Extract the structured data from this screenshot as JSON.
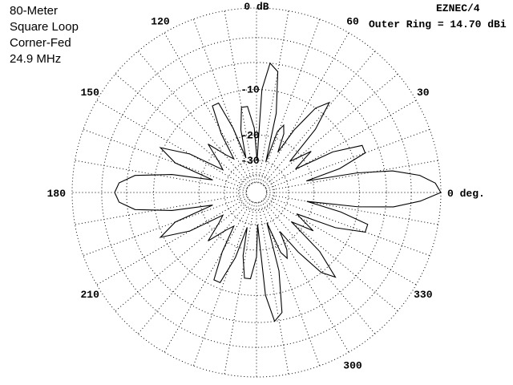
{
  "title_block": {
    "lines": [
      "80-Meter",
      "Square Loop",
      "Corner-Fed",
      "24.9 MHz"
    ]
  },
  "program": "EZNEC/4",
  "outer_ring_label": "Outer Ring = 14.70 dBi",
  "chart_data": {
    "type": "polar",
    "title": "",
    "angle_labels": [
      {
        "angle": 0,
        "text": "0 deg."
      },
      {
        "angle": 30,
        "text": "30"
      },
      {
        "angle": 60,
        "text": "60"
      },
      {
        "angle": 90,
        "text": "0 dB"
      },
      {
        "angle": 120,
        "text": "120"
      },
      {
        "angle": 150,
        "text": "150"
      },
      {
        "angle": 180,
        "text": "180"
      },
      {
        "angle": 210,
        "text": "210"
      },
      {
        "angle": 300,
        "text": "300"
      },
      {
        "angle": 330,
        "text": "330"
      }
    ],
    "radial_labels": [
      "-10",
      "-20",
      "-30"
    ],
    "radial_label_db": [
      -10,
      -20,
      -30
    ],
    "ring_db": [
      0,
      -3,
      -6,
      -10,
      -20,
      -30,
      -40,
      -50
    ],
    "reference_dbi": 14.7,
    "spoke_step_deg": 10,
    "grid": true,
    "pattern_series": {
      "name": "",
      "points": [
        {
          "az": 0,
          "db": 0
        },
        {
          "az": 3,
          "db": -0.5
        },
        {
          "az": 6,
          "db": -2
        },
        {
          "az": 9,
          "db": -5
        },
        {
          "az": 11,
          "db": -10
        },
        {
          "az": 13,
          "db": -22
        },
        {
          "az": 16,
          "db": -13
        },
        {
          "az": 20,
          "db": -8
        },
        {
          "az": 24,
          "db": -8
        },
        {
          "az": 28,
          "db": -13
        },
        {
          "az": 31,
          "db": -24
        },
        {
          "az": 34,
          "db": -21
        },
        {
          "az": 37,
          "db": -17
        },
        {
          "az": 40,
          "db": -21
        },
        {
          "az": 43,
          "db": -24
        },
        {
          "az": 47,
          "db": -13
        },
        {
          "az": 51,
          "db": -8
        },
        {
          "az": 55,
          "db": -10
        },
        {
          "az": 59,
          "db": -16
        },
        {
          "az": 62,
          "db": -24
        },
        {
          "az": 65,
          "db": -18
        },
        {
          "az": 68,
          "db": -16
        },
        {
          "az": 71,
          "db": -18
        },
        {
          "az": 73,
          "db": -30
        },
        {
          "az": 76,
          "db": -14
        },
        {
          "az": 80,
          "db": -7
        },
        {
          "az": 84,
          "db": -6
        },
        {
          "az": 87,
          "db": -10
        },
        {
          "az": 89,
          "db": -30
        },
        {
          "az": 92,
          "db": -18
        },
        {
          "az": 96,
          "db": -13
        },
        {
          "az": 100,
          "db": -13
        },
        {
          "az": 104,
          "db": -18
        },
        {
          "az": 107,
          "db": -28
        },
        {
          "az": 110,
          "db": -17
        },
        {
          "az": 113,
          "db": -11
        },
        {
          "az": 117,
          "db": -11
        },
        {
          "az": 121,
          "db": -17
        },
        {
          "az": 124,
          "db": -26
        },
        {
          "az": 129,
          "db": -23
        },
        {
          "az": 135,
          "db": -17
        },
        {
          "az": 141,
          "db": -23
        },
        {
          "az": 146,
          "db": -26
        },
        {
          "az": 150,
          "db": -15
        },
        {
          "az": 155,
          "db": -9.5
        },
        {
          "az": 160,
          "db": -13
        },
        {
          "az": 164,
          "db": -24
        },
        {
          "az": 168,
          "db": -13
        },
        {
          "az": 172,
          "db": -7
        },
        {
          "az": 176,
          "db": -5
        },
        {
          "az": 180,
          "db": -4.5
        },
        {
          "az": 184,
          "db": -5
        },
        {
          "az": 188,
          "db": -7
        },
        {
          "az": 192,
          "db": -13
        },
        {
          "az": 196,
          "db": -24
        },
        {
          "az": 200,
          "db": -13
        },
        {
          "az": 205,
          "db": -9.5
        },
        {
          "az": 210,
          "db": -15
        },
        {
          "az": 214,
          "db": -26
        },
        {
          "az": 219,
          "db": -23
        },
        {
          "az": 225,
          "db": -17
        },
        {
          "az": 231,
          "db": -23
        },
        {
          "az": 236,
          "db": -26
        },
        {
          "az": 240,
          "db": -17
        },
        {
          "az": 244,
          "db": -11
        },
        {
          "az": 248,
          "db": -11
        },
        {
          "az": 252,
          "db": -17
        },
        {
          "az": 255,
          "db": -28
        },
        {
          "az": 258,
          "db": -18
        },
        {
          "az": 262,
          "db": -13
        },
        {
          "az": 266,
          "db": -13
        },
        {
          "az": 270,
          "db": -18
        },
        {
          "az": 272,
          "db": -30
        },
        {
          "az": 275,
          "db": -10
        },
        {
          "az": 278,
          "db": -6
        },
        {
          "az": 282,
          "db": -7
        },
        {
          "az": 286,
          "db": -14
        },
        {
          "az": 289,
          "db": -30
        },
        {
          "az": 292,
          "db": -18
        },
        {
          "az": 295,
          "db": -16
        },
        {
          "az": 298,
          "db": -18
        },
        {
          "az": 301,
          "db": -24
        },
        {
          "az": 305,
          "db": -16
        },
        {
          "az": 309,
          "db": -10
        },
        {
          "az": 313,
          "db": -8
        },
        {
          "az": 317,
          "db": -13
        },
        {
          "az": 320,
          "db": -24
        },
        {
          "az": 323,
          "db": -21
        },
        {
          "az": 326,
          "db": -17
        },
        {
          "az": 329,
          "db": -21
        },
        {
          "az": 332,
          "db": -24
        },
        {
          "az": 336,
          "db": -13
        },
        {
          "az": 340,
          "db": -8
        },
        {
          "az": 344,
          "db": -8
        },
        {
          "az": 347,
          "db": -13
        },
        {
          "az": 350,
          "db": -22
        },
        {
          "az": 352,
          "db": -10
        },
        {
          "az": 354,
          "db": -5
        },
        {
          "az": 357,
          "db": -2
        },
        {
          "az": 360,
          "db": 0
        }
      ]
    }
  }
}
